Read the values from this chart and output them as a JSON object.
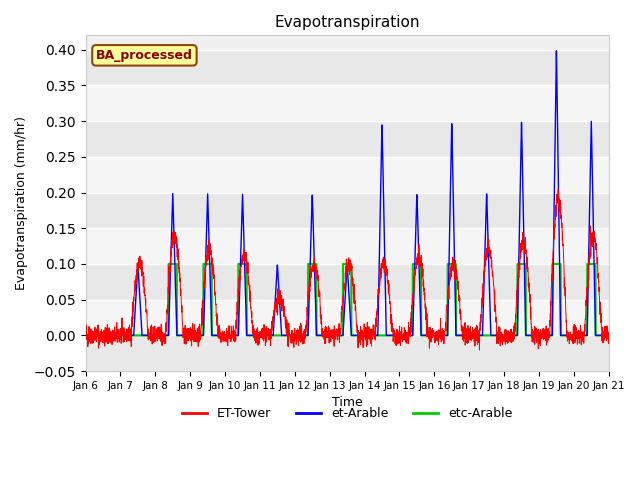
{
  "title": "Evapotranspiration",
  "xlabel": "Time",
  "ylabel": "Evapotranspiration (mm/hr)",
  "ylim": [
    -0.05,
    0.42
  ],
  "xlim": [
    0,
    15
  ],
  "fig_bg": "#ffffff",
  "plot_bg_light": "#f0f0f0",
  "plot_bg_dark": "#e0e0e0",
  "annotation_text": "BA_processed",
  "annotation_bg": "#ffff99",
  "annotation_border": "#8b4513",
  "annotation_text_color": "#8b0000",
  "grid_color": "#ffffff",
  "colors": {
    "ET-Tower": "#ff0000",
    "et-Arable": "#0000ff",
    "etc-Arable": "#00cc00"
  },
  "et_arable_amps": [
    0.0,
    0.1,
    0.2,
    0.2,
    0.2,
    0.1,
    0.2,
    0.1,
    0.3,
    0.2,
    0.3,
    0.2,
    0.3,
    0.4,
    0.3,
    0.3
  ],
  "etc_arable_amps": [
    0.0,
    0.0,
    0.1,
    0.1,
    0.1,
    0.0,
    0.1,
    0.1,
    0.0,
    0.1,
    0.1,
    0.0,
    0.1,
    0.1,
    0.1,
    0.1
  ],
  "et_tower_amps": [
    0.0,
    0.1,
    0.14,
    0.12,
    0.11,
    0.05,
    0.1,
    0.1,
    0.1,
    0.11,
    0.1,
    0.12,
    0.13,
    0.19,
    0.14,
    0.15
  ],
  "n_points": 3000,
  "seed": 42,
  "tick_labels": [
    "Jan 6",
    "Jan 7",
    "Jan 8",
    "Jan 9",
    "Jan 10",
    "Jan 11",
    "Jan 12",
    "Jan 13",
    "Jan 14",
    "Jan 15",
    "Jan 16",
    "Jan 17",
    "Jan 18",
    "Jan 19",
    "Jan 20",
    "Jan 21"
  ],
  "yticks": [
    -0.05,
    0.0,
    0.05,
    0.1,
    0.15,
    0.2,
    0.25,
    0.3,
    0.35,
    0.4
  ]
}
